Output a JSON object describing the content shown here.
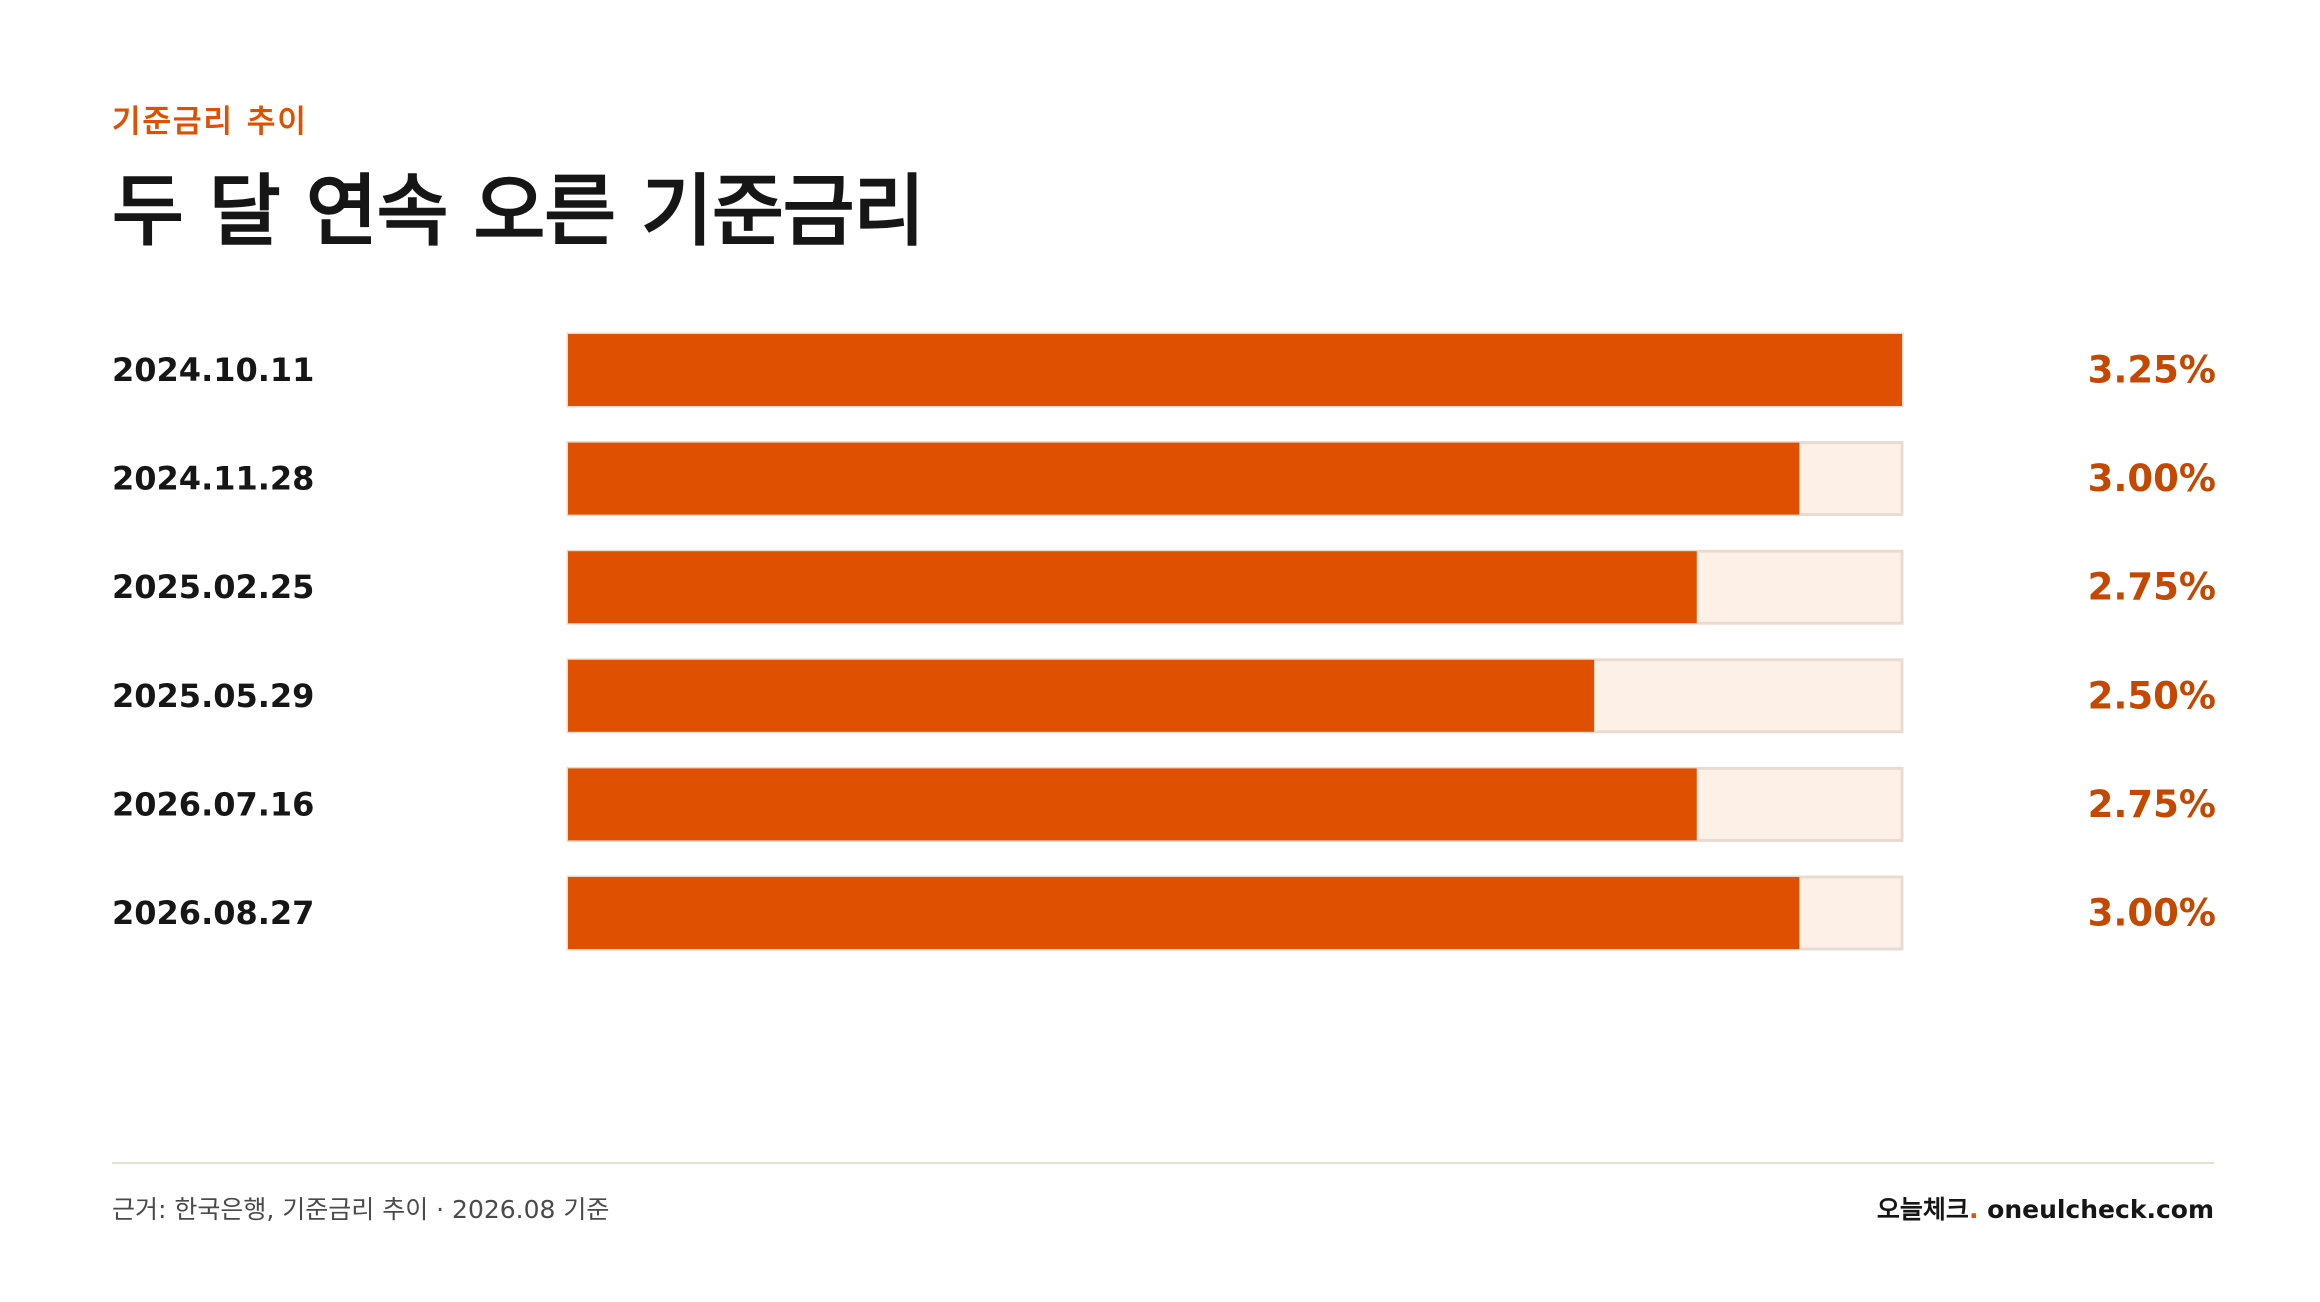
{
  "header": {
    "eyebrow": "기준금리 추이",
    "title": "두 달 연속 오른 기준금리"
  },
  "colors": {
    "accent": "#dd5100",
    "bar_fill": "#df5000",
    "bar_track": "#fdf0e6",
    "bar_border": "#eadbd0",
    "value_text": "#c44800"
  },
  "chart_data": {
    "type": "bar",
    "orientation": "horizontal",
    "title": "두 달 연속 오른 기준금리",
    "categories": [
      "2024.10.11",
      "2024.11.28",
      "2025.02.25",
      "2025.05.29",
      "2026.07.16",
      "2026.08.27"
    ],
    "values": [
      3.25,
      3.0,
      2.75,
      2.5,
      2.75,
      3.0
    ],
    "value_labels": [
      "3.25%",
      "3.00%",
      "2.75%",
      "2.50%",
      "2.75%",
      "3.00%"
    ],
    "xlim": [
      0,
      3.25
    ],
    "xlabel": "",
    "ylabel": "",
    "grid": false,
    "legend": "none"
  },
  "footer": {
    "source": "근거: 한국은행, 기준금리 추이 · 2026.08 기준",
    "brand_name": "오늘체크",
    "brand_dot": ".",
    "brand_site": " oneulcheck.com"
  }
}
